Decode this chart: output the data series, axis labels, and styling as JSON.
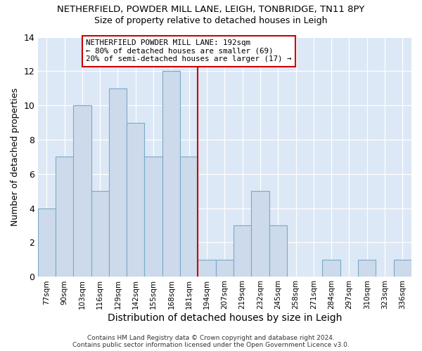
{
  "title1": "NETHERFIELD, POWDER MILL LANE, LEIGH, TONBRIDGE, TN11 8PY",
  "title2": "Size of property relative to detached houses in Leigh",
  "xlabel": "Distribution of detached houses by size in Leigh",
  "ylabel": "Number of detached properties",
  "categories": [
    "77sqm",
    "90sqm",
    "103sqm",
    "116sqm",
    "129sqm",
    "142sqm",
    "155sqm",
    "168sqm",
    "181sqm",
    "194sqm",
    "207sqm",
    "219sqm",
    "232sqm",
    "245sqm",
    "258sqm",
    "271sqm",
    "284sqm",
    "297sqm",
    "310sqm",
    "323sqm",
    "336sqm"
  ],
  "values": [
    4,
    7,
    10,
    5,
    11,
    9,
    7,
    12,
    7,
    1,
    1,
    3,
    5,
    3,
    0,
    0,
    1,
    0,
    1,
    0,
    1
  ],
  "bar_color": "#ccdaeb",
  "bar_edge_color": "#7aaac8",
  "vline_color": "#cc0000",
  "annotation_text": "NETHERFIELD POWDER MILL LANE: 192sqm\n← 80% of detached houses are smaller (69)\n20% of semi-detached houses are larger (17) →",
  "annotation_box_edge": "#cc0000",
  "footer": "Contains HM Land Registry data © Crown copyright and database right 2024.\nContains public sector information licensed under the Open Government Licence v3.0.",
  "plot_bg_color": "#dce8f5",
  "fig_bg_color": "#ffffff",
  "ylim": [
    0,
    14
  ],
  "yticks": [
    0,
    2,
    4,
    6,
    8,
    10,
    12,
    14
  ]
}
